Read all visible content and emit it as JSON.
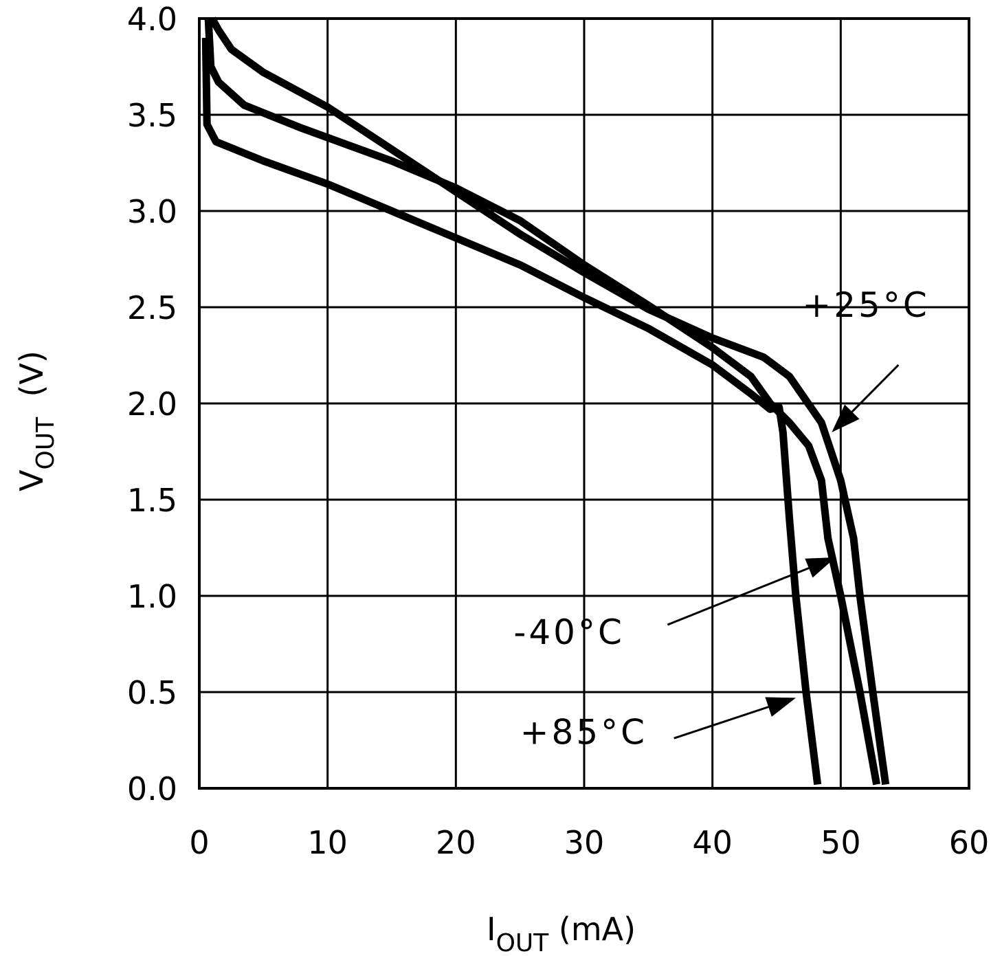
{
  "chart_data": {
    "type": "line",
    "xlabel": {
      "main": "I",
      "sub": "OUT",
      "unit": " (mA)"
    },
    "ylabel": {
      "main": "V",
      "sub": "OUT",
      "unit": "  (V)"
    },
    "xlim": [
      0,
      60
    ],
    "ylim": [
      0,
      4.0
    ],
    "x_ticks": [
      0,
      10,
      20,
      30,
      40,
      50,
      60
    ],
    "x_tick_labels": [
      "0",
      "10",
      "20",
      "30",
      "40",
      "50",
      "60"
    ],
    "y_ticks": [
      0,
      0.5,
      1.0,
      1.5,
      2.0,
      2.5,
      3.0,
      3.5,
      4.0
    ],
    "y_tick_labels": [
      "0.0",
      "0.5",
      "1.0",
      "1.5",
      "2.0",
      "2.5",
      "3.0",
      "3.5",
      "4.0"
    ],
    "grid": true,
    "line_color": "#000000",
    "series": [
      {
        "name": "+25°C",
        "points": [
          [
            1,
            4.0
          ],
          [
            1.5,
            3.94
          ],
          [
            2.5,
            3.84
          ],
          [
            5,
            3.72
          ],
          [
            10,
            3.54
          ],
          [
            15,
            3.32
          ],
          [
            20,
            3.1
          ],
          [
            25,
            2.88
          ],
          [
            30,
            2.68
          ],
          [
            35,
            2.49
          ],
          [
            40,
            2.34
          ],
          [
            44,
            2.24
          ],
          [
            46,
            2.14
          ],
          [
            48.5,
            1.9
          ],
          [
            50,
            1.6
          ],
          [
            51,
            1.3
          ],
          [
            51.5,
            1.0
          ],
          [
            52.5,
            0.5
          ],
          [
            53.5,
            0.02
          ]
        ]
      },
      {
        "name": "-40°C",
        "points": [
          [
            0.7,
            4.0
          ],
          [
            0.9,
            3.75
          ],
          [
            1.5,
            3.67
          ],
          [
            3.5,
            3.55
          ],
          [
            8,
            3.43
          ],
          [
            15,
            3.26
          ],
          [
            20,
            3.12
          ],
          [
            25,
            2.95
          ],
          [
            30,
            2.72
          ],
          [
            35,
            2.51
          ],
          [
            40,
            2.29
          ],
          [
            43,
            2.14
          ],
          [
            44.5,
            2.0
          ],
          [
            46,
            1.9
          ],
          [
            47.5,
            1.78
          ],
          [
            48.5,
            1.6
          ],
          [
            49,
            1.3
          ],
          [
            50,
            1.0
          ],
          [
            51.5,
            0.5
          ],
          [
            52.8,
            0.02
          ]
        ]
      },
      {
        "name": "+85°C",
        "points": [
          [
            0.5,
            3.9
          ],
          [
            0.6,
            3.45
          ],
          [
            1.3,
            3.36
          ],
          [
            5,
            3.26
          ],
          [
            10,
            3.14
          ],
          [
            15,
            3.0
          ],
          [
            20,
            2.86
          ],
          [
            25,
            2.72
          ],
          [
            30,
            2.55
          ],
          [
            35,
            2.39
          ],
          [
            40,
            2.2
          ],
          [
            43,
            2.05
          ],
          [
            44.5,
            1.97
          ],
          [
            45.2,
            1.98
          ],
          [
            45.5,
            1.85
          ],
          [
            46,
            1.4
          ],
          [
            46.5,
            1.0
          ],
          [
            47.3,
            0.5
          ],
          [
            48.2,
            0.02
          ]
        ]
      }
    ],
    "annotations": [
      {
        "text": "+25°C",
        "series": "+25°C",
        "label_x": 47,
        "label_y": 2.45,
        "arrow_from": [
          54.5,
          2.2
        ],
        "arrow_to": [
          49.3,
          1.85
        ]
      },
      {
        "text": "-40°C",
        "series": "-40°C",
        "label_x": 24.5,
        "label_y": 0.75,
        "arrow_from": [
          36.5,
          0.85
        ],
        "arrow_to": [
          49.6,
          1.2
        ]
      },
      {
        "text": "+85°C",
        "series": "+85°C",
        "label_x": 25,
        "label_y": 0.23,
        "arrow_from": [
          37,
          0.26
        ],
        "arrow_to": [
          46.5,
          0.47
        ]
      }
    ]
  }
}
